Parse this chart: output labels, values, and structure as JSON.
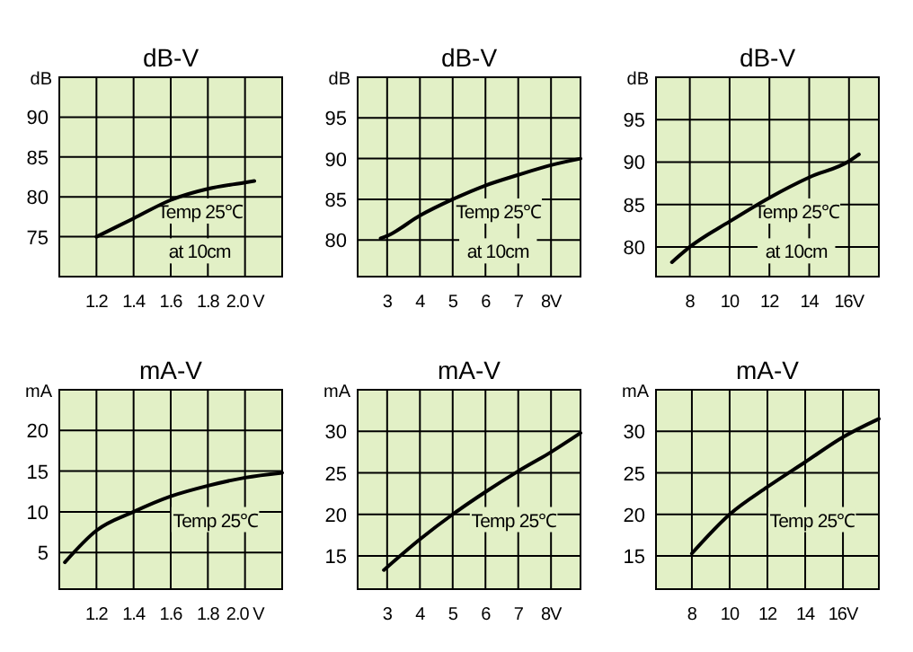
{
  "chart_data": [
    {
      "type": "line",
      "title": "dB-V",
      "ylabel": "dB",
      "xlim": [
        1.0,
        2.2
      ],
      "ylim": [
        70,
        95
      ],
      "xticks": [
        1.2,
        1.4,
        1.6,
        1.8,
        {
          "value": 2.0,
          "label": "2.0 V"
        }
      ],
      "yticks": [
        75,
        80,
        85,
        90
      ],
      "grid": true,
      "annotations": [
        "Temp 25℃",
        "at 10cm"
      ],
      "series": [
        {
          "color": "#000000",
          "x": [
            1.2,
            1.4,
            1.6,
            1.8,
            2.0,
            2.05
          ],
          "values": [
            75,
            77.3,
            79.6,
            81,
            81.8,
            82
          ]
        }
      ]
    },
    {
      "type": "line",
      "title": "dB-V",
      "ylabel": "dB",
      "xlim": [
        2.1,
        8.9
      ],
      "ylim": [
        75.5,
        100
      ],
      "xticks": [
        3,
        4,
        5,
        6,
        7,
        {
          "value": 8,
          "label": "8V"
        }
      ],
      "yticks": [
        80,
        85,
        90,
        95
      ],
      "grid": true,
      "annotations": [
        "Temp 25℃",
        "at 10cm"
      ],
      "series": [
        {
          "color": "#000000",
          "x": [
            2.8,
            3,
            4,
            5,
            6,
            7,
            8,
            8.9
          ],
          "values": [
            80.2,
            80.5,
            83,
            85,
            86.7,
            88,
            89.2,
            90
          ]
        }
      ]
    },
    {
      "type": "line",
      "title": "dB-V",
      "ylabel": "dB",
      "xlim": [
        6.3,
        17.5
      ],
      "ylim": [
        76.5,
        100
      ],
      "xticks": [
        8,
        10,
        12,
        14,
        {
          "value": 16,
          "label": "16V"
        }
      ],
      "yticks": [
        80,
        85,
        90,
        95
      ],
      "grid": true,
      "annotations": [
        "Temp 25℃",
        "at 10cm"
      ],
      "series": [
        {
          "color": "#000000",
          "x": [
            7.1,
            8,
            10,
            12,
            14,
            16,
            16.5
          ],
          "values": [
            78.2,
            80,
            83,
            85.8,
            88.2,
            90.1,
            90.9
          ]
        }
      ]
    },
    {
      "type": "line",
      "title": "mA-V",
      "ylabel": "mA",
      "xlim": [
        1.0,
        2.2
      ],
      "ylim": [
        0.5,
        25
      ],
      "xticks": [
        1.2,
        1.4,
        1.6,
        1.8,
        {
          "value": 2.0,
          "label": "2.0 V"
        }
      ],
      "yticks": [
        5,
        10,
        15,
        20
      ],
      "grid": true,
      "annotations": [
        "Temp 25℃"
      ],
      "series": [
        {
          "color": "#000000",
          "x": [
            1.03,
            1.2,
            1.4,
            1.6,
            1.8,
            2.0,
            2.2
          ],
          "values": [
            3.8,
            7.7,
            10,
            11.9,
            13.2,
            14.2,
            14.8
          ]
        }
      ]
    },
    {
      "type": "line",
      "title": "mA-V",
      "ylabel": "mA",
      "xlim": [
        2.1,
        8.9
      ],
      "ylim": [
        11,
        35
      ],
      "xticks": [
        3,
        4,
        5,
        6,
        7,
        {
          "value": 8,
          "label": "8V"
        }
      ],
      "yticks": [
        15,
        20,
        25,
        30
      ],
      "grid": true,
      "annotations": [
        "Temp 25℃"
      ],
      "series": [
        {
          "color": "#000000",
          "x": [
            2.9,
            4,
            5,
            6,
            7,
            8,
            8.9
          ],
          "values": [
            13.3,
            17,
            20,
            22.7,
            25.2,
            27.5,
            29.8
          ]
        }
      ]
    },
    {
      "type": "line",
      "title": "mA-V",
      "ylabel": "mA",
      "xlim": [
        6.1,
        17.9
      ],
      "ylim": [
        11,
        35
      ],
      "xticks": [
        8,
        10,
        12,
        14,
        {
          "value": 16,
          "label": "16V"
        }
      ],
      "yticks": [
        15,
        20,
        25,
        30
      ],
      "grid": true,
      "annotations": [
        "Temp 25℃"
      ],
      "series": [
        {
          "color": "#000000",
          "x": [
            8,
            10,
            12,
            14,
            16,
            17.9
          ],
          "values": [
            15.3,
            20,
            23.3,
            26.3,
            29.3,
            31.5
          ]
        }
      ]
    }
  ]
}
